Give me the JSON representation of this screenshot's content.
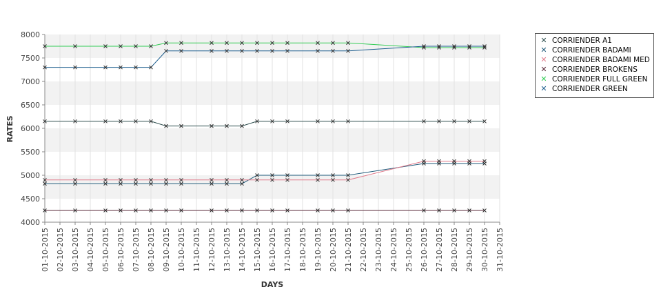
{
  "chart_data": {
    "type": "line",
    "xlabel": "DAYS",
    "ylabel": "RATES",
    "ylim": [
      4000,
      8000
    ],
    "yticks": [
      4000,
      4500,
      5000,
      5500,
      6000,
      6500,
      7000,
      7500,
      8000
    ],
    "x_axis_dates": [
      "01-10-2015",
      "02-10-2015",
      "03-10-2015",
      "04-10-2015",
      "05-10-2015",
      "06-10-2015",
      "07-10-2015",
      "08-10-2015",
      "09-10-2015",
      "10-10-2015",
      "11-10-2015",
      "12-10-2015",
      "13-10-2015",
      "14-10-2015",
      "15-10-2015",
      "16-10-2015",
      "17-10-2015",
      "18-10-2015",
      "19-10-2015",
      "20-10-2015",
      "21-10-2015",
      "22-10-2015",
      "23-10-2015",
      "24-10-2015",
      "25-10-2015",
      "26-10-2015",
      "27-10-2015",
      "28-10-2015",
      "29-10-2015",
      "30-10-2015",
      "31-10-2015"
    ],
    "x": [
      "01-10-2015",
      "03-10-2015",
      "05-10-2015",
      "06-10-2015",
      "07-10-2015",
      "08-10-2015",
      "09-10-2015",
      "10-10-2015",
      "12-10-2015",
      "13-10-2015",
      "14-10-2015",
      "15-10-2015",
      "16-10-2015",
      "17-10-2015",
      "19-10-2015",
      "20-10-2015",
      "21-10-2015",
      "26-10-2015",
      "27-10-2015",
      "28-10-2015",
      "29-10-2015",
      "30-10-2015"
    ],
    "grid": true,
    "legend_position": "right",
    "series": [
      {
        "name": "CORRIENDER A1",
        "color": "#2f4f4f",
        "values": [
          6150,
          6150,
          6150,
          6150,
          6150,
          6150,
          6050,
          6050,
          6050,
          6050,
          6050,
          6150,
          6150,
          6150,
          6150,
          6150,
          6150,
          6150,
          6150,
          6150,
          6150,
          6150
        ]
      },
      {
        "name": "CORRIENDER BADAMI",
        "color": "#1f5a7a",
        "values": [
          4820,
          4820,
          4820,
          4820,
          4820,
          4820,
          4820,
          4820,
          4820,
          4820,
          4820,
          5000,
          5000,
          5000,
          5000,
          5000,
          5000,
          5250,
          5250,
          5250,
          5250,
          5250
        ]
      },
      {
        "name": "CORRIENDER BADAMI MED",
        "color": "#e07a8a",
        "values": [
          4900,
          4900,
          4900,
          4900,
          4900,
          4900,
          4900,
          4900,
          4900,
          4900,
          4900,
          4900,
          4900,
          4900,
          4900,
          4900,
          4900,
          5300,
          5300,
          5300,
          5300,
          5300
        ]
      },
      {
        "name": "CORRIENDER BROKENS",
        "color": "#5a2a3a",
        "values": [
          4250,
          4250,
          4250,
          4250,
          4250,
          4250,
          4250,
          4250,
          4250,
          4250,
          4250,
          4250,
          4250,
          4250,
          4250,
          4250,
          4250,
          4250,
          4250,
          4250,
          4250,
          4250
        ]
      },
      {
        "name": "CORRIENDER FULL GREEN",
        "color": "#33cc55",
        "values": [
          7750,
          7750,
          7750,
          7750,
          7750,
          7750,
          7820,
          7820,
          7820,
          7820,
          7820,
          7820,
          7820,
          7820,
          7820,
          7820,
          7820,
          7720,
          7720,
          7720,
          7720,
          7720
        ]
      },
      {
        "name": "CORRIENDER GREEN",
        "color": "#1f5f8f",
        "values": [
          7300,
          7300,
          7300,
          7300,
          7300,
          7300,
          7650,
          7650,
          7650,
          7650,
          7650,
          7650,
          7650,
          7650,
          7650,
          7650,
          7650,
          7750,
          7750,
          7750,
          7750,
          7750
        ]
      }
    ]
  }
}
